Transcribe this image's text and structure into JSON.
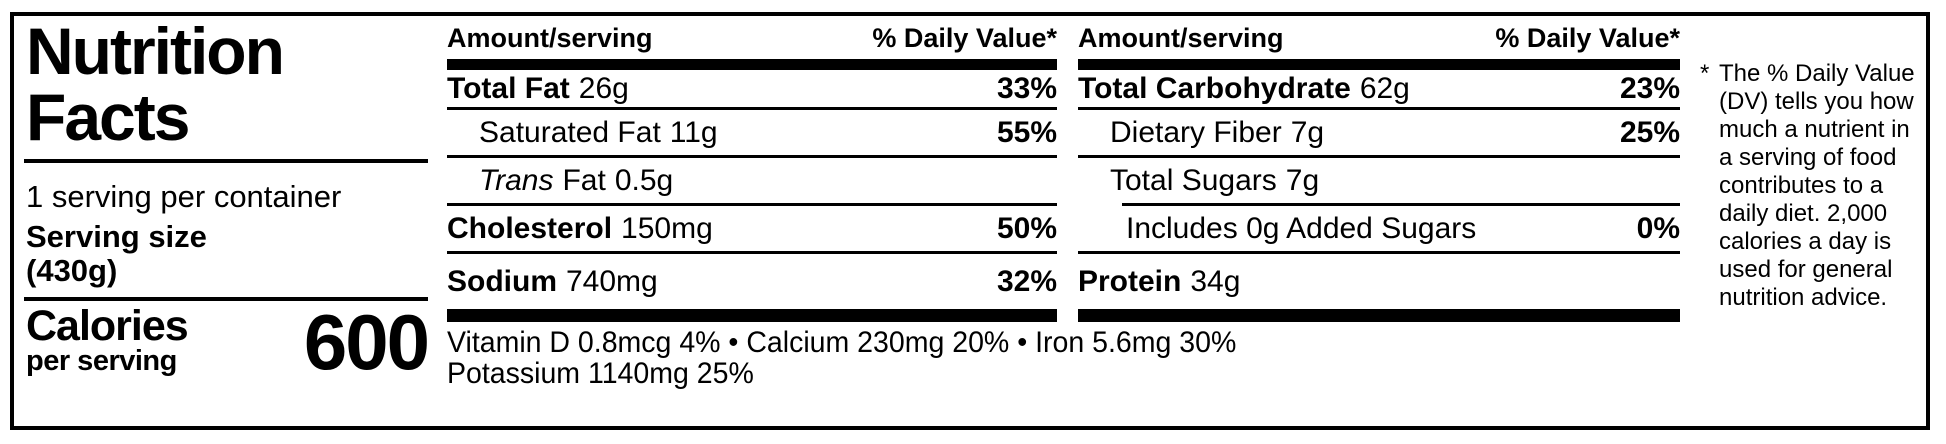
{
  "colors": {
    "ink": "#000000",
    "background": "#ffffff"
  },
  "label": {
    "title_line1": "Nutrition",
    "title_line2": "Facts",
    "servings_per_container": "1 serving per container",
    "serving_size_label": "Serving size",
    "serving_size_value": "(430g)",
    "calories_label": "Calories",
    "calories_sublabel": "per serving",
    "calories_value": "600"
  },
  "columns": [
    {
      "header_amount": "Amount/serving",
      "header_dv": "% Daily Value*",
      "rows": [
        {
          "name": "Total Fat",
          "amount": "26g",
          "dv": "33%"
        },
        {
          "name": "Saturated Fat",
          "amount": "11g",
          "dv": "55%"
        },
        {
          "name_italic": "Trans",
          "name": "Fat",
          "amount": "0.5g",
          "dv": ""
        },
        {
          "name": "Cholesterol",
          "amount": "150mg",
          "dv": "50%"
        },
        {
          "name": "Sodium",
          "amount": "740mg",
          "dv": "32%"
        }
      ]
    },
    {
      "header_amount": "Amount/serving",
      "header_dv": "% Daily Value*",
      "rows": [
        {
          "name": "Total Carbohydrate",
          "amount": "62g",
          "dv": "23%"
        },
        {
          "name": "Dietary Fiber",
          "amount": "7g",
          "dv": "25%"
        },
        {
          "name": "Total Sugars",
          "amount": "7g",
          "dv": ""
        },
        {
          "name": "Includes 0g Added Sugars",
          "amount": "",
          "dv": "0%"
        },
        {
          "name": "Protein",
          "amount": "34g",
          "dv": ""
        }
      ]
    }
  ],
  "vitamins": {
    "line1": "Vitamin D 0.8mcg 4% • Calcium 230mg 20% • Iron 5.6mg 30%",
    "line2": "Potassium 1140mg 25%"
  },
  "footnote": {
    "marker": "*",
    "lines": [
      "The % Daily Value",
      "(DV) tells you how",
      "much a nutrient in",
      "a serving of food",
      "contributes to a",
      "daily diet. 2,000",
      "calories a day is",
      "used for general",
      "nutrition advice."
    ]
  }
}
